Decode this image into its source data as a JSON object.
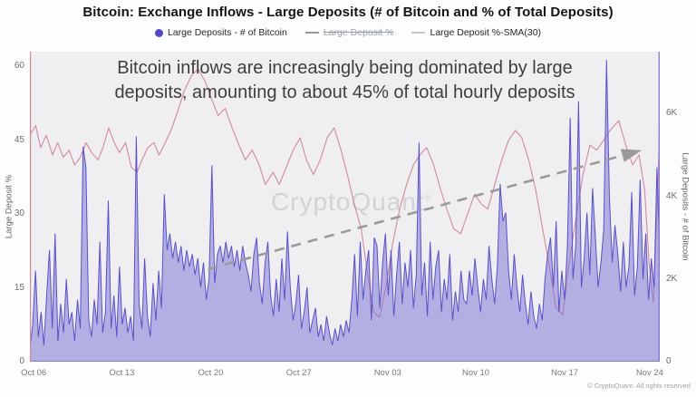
{
  "title": "Bitcoin: Exchange Inflows - Large Deposits (# of Bitcoin and % of Total Deposits)",
  "legend": {
    "items": [
      {
        "label": "Large Deposits - # of Bitcoin",
        "marker": "dot",
        "color": "#5348c7",
        "disabled": false
      },
      {
        "label": "Large Deposit %",
        "marker": "line",
        "color": "#95999f",
        "disabled": true
      },
      {
        "label": "Large Deposit %-SMA(30)",
        "marker": "line",
        "color": "#c6c4ca",
        "disabled": false
      }
    ]
  },
  "annotation": {
    "line1": "Bitcoin inflows are increasingly being dominated by large",
    "line2": "deposits, amounting to about 45% of total hourly deposits"
  },
  "watermark": "CryptoQuant",
  "copyright": "© CryptoQuant. All rights reserved",
  "chart_data": {
    "type": "area",
    "title": "Bitcoin: Exchange Inflows - Large Deposits (# of Bitcoin and % of Total Deposits)",
    "x_axis": {
      "labels": [
        "Oct 06",
        "Oct 13",
        "Oct 20",
        "Oct 27",
        "Nov 03",
        "Nov 10",
        "Nov 17",
        "Nov 24"
      ],
      "positions_pct": [
        0.6,
        14.6,
        28.7,
        42.7,
        56.8,
        70.8,
        84.9,
        98.4
      ]
    },
    "left_axis": {
      "title": "Large Deposit %",
      "max": 63,
      "min": 0,
      "ticks": [
        {
          "v": 0,
          "label": "0"
        },
        {
          "v": 15,
          "label": "15"
        },
        {
          "v": 30,
          "label": "30"
        },
        {
          "v": 45,
          "label": "45"
        },
        {
          "v": 60,
          "label": "60"
        }
      ],
      "axis_color": "#d98a97"
    },
    "right_axis": {
      "title": "Large Deposits - # of Bitcoin",
      "max": 7500,
      "min": 0,
      "ticks": [
        {
          "v": 0,
          "label": "0"
        },
        {
          "v": 2000,
          "label": "2K"
        },
        {
          "v": 4000,
          "label": "4K"
        },
        {
          "v": 6000,
          "label": "6K"
        }
      ],
      "axis_color": "#8078cf"
    },
    "series": [
      {
        "name": "Large Deposits - # of Bitcoin",
        "axis": "right",
        "style": "spiky-area",
        "stroke": "#5a51c8",
        "fill": "rgba(122,112,214,0.5)",
        "values": [
          300,
          900,
          2200,
          600,
          1200,
          400,
          1600,
          2700,
          800,
          3100,
          500,
          1400,
          700,
          2000,
          900,
          1200,
          500,
          1500,
          800,
          5200,
          4700,
          1000,
          600,
          1500,
          900,
          2900,
          700,
          1200,
          3900,
          800,
          1600,
          600,
          2300,
          900,
          1300,
          700,
          1100,
          500,
          5450,
          1400,
          800,
          2500,
          1100,
          600,
          1900,
          1000,
          2200,
          1300,
          4050,
          2700,
          3100,
          2500,
          2900,
          2400,
          2800,
          2200,
          2700,
          2300,
          2600,
          2100,
          2500,
          1800,
          2400,
          1500,
          2000,
          4750,
          1900,
          2600,
          2800,
          2400,
          2900,
          2500,
          2800,
          2300,
          2700,
          2200,
          2800,
          2400,
          2100,
          1700,
          2600,
          3000,
          1900,
          1400,
          2400,
          2900,
          1600,
          1100,
          2000,
          1200,
          2500,
          1500,
          3150,
          1800,
          1000,
          1400,
          2100,
          800,
          1200,
          1800,
          700,
          1000,
          1300,
          600,
          900,
          500,
          1100,
          700,
          400,
          800,
          500,
          900,
          600,
          1000,
          700,
          1500,
          2600,
          1100,
          2900,
          1500,
          2200,
          2700,
          1000,
          3000,
          2800,
          1300,
          2400,
          3100,
          1600,
          2700,
          1100,
          2100,
          2900,
          1400,
          2400,
          1800,
          2700,
          1300,
          2100,
          5300,
          1600,
          2400,
          1100,
          2900,
          1500,
          2300,
          2700,
          1200,
          2000,
          1500,
          2600,
          1000,
          1700,
          1200,
          2200,
          1500,
          1400,
          2200,
          1600,
          2500,
          1800,
          1200,
          2000,
          1500,
          2800,
          2000,
          1400,
          2300,
          4300,
          3400,
          3600,
          2200,
          1500,
          2600,
          1800,
          1200,
          2100,
          1400,
          900,
          1700,
          1100,
          800,
          1400,
          1000,
          2000,
          2600,
          3000,
          1800,
          3400,
          1200,
          2200,
          1500,
          2800,
          5900,
          2000,
          2800,
          6300,
          1800,
          2500,
          3600,
          2100,
          4200,
          3000,
          1800,
          2400,
          3200,
          7300,
          4000,
          2400,
          3300,
          2600,
          1700,
          2900,
          1800,
          2300,
          4100,
          1600,
          2300,
          4400,
          2000,
          3100,
          1500,
          2500,
          1800,
          4700,
          2600
        ]
      },
      {
        "name": "Large Deposit %-SMA(30)",
        "axis": "left",
        "style": "line",
        "stroke": "#d4889c",
        "points": [
          [
            0,
            46
          ],
          [
            0.9,
            48
          ],
          [
            1.7,
            43.5
          ],
          [
            2.6,
            46
          ],
          [
            3.6,
            42
          ],
          [
            4.4,
            44.5
          ],
          [
            5.3,
            41.5
          ],
          [
            6.2,
            43
          ],
          [
            7.1,
            40
          ],
          [
            8,
            41.5
          ],
          [
            8.9,
            44.5
          ],
          [
            9.8,
            42.5
          ],
          [
            10.8,
            41
          ],
          [
            11.6,
            43.5
          ],
          [
            12.5,
            47.5
          ],
          [
            13.4,
            44.5
          ],
          [
            14.2,
            42.5
          ],
          [
            15.2,
            44.5
          ],
          [
            16.1,
            39.5
          ],
          [
            17,
            38.5
          ],
          [
            17.8,
            41
          ],
          [
            18.7,
            43.5
          ],
          [
            19.7,
            44.5
          ],
          [
            20.5,
            42
          ],
          [
            21.3,
            44
          ],
          [
            22.4,
            47
          ],
          [
            23.5,
            51
          ],
          [
            24.5,
            55
          ],
          [
            25.6,
            58
          ],
          [
            26.7,
            59.5
          ],
          [
            27.8,
            57
          ],
          [
            28.8,
            53.5
          ],
          [
            29.9,
            50
          ],
          [
            31,
            51.5
          ],
          [
            32.1,
            47.5
          ],
          [
            33.2,
            44
          ],
          [
            34.2,
            41
          ],
          [
            35.3,
            43
          ],
          [
            36.4,
            40
          ],
          [
            37.4,
            36
          ],
          [
            38.6,
            38.5
          ],
          [
            39.6,
            36
          ],
          [
            40.7,
            39.5
          ],
          [
            41.8,
            43
          ],
          [
            42.9,
            45.5
          ],
          [
            43.9,
            41
          ],
          [
            45,
            38
          ],
          [
            46.1,
            41
          ],
          [
            47.2,
            45.5
          ],
          [
            48.3,
            47.5
          ],
          [
            49.4,
            43
          ],
          [
            50.4,
            38
          ],
          [
            51.5,
            32
          ],
          [
            52.6,
            27
          ],
          [
            53.7,
            17
          ],
          [
            54.6,
            10
          ],
          [
            55.5,
            9
          ],
          [
            56.5,
            15
          ],
          [
            57.6,
            24
          ],
          [
            58.7,
            31
          ],
          [
            59.8,
            36
          ],
          [
            60.9,
            40
          ],
          [
            61.9,
            42
          ],
          [
            63,
            43.5
          ],
          [
            64.1,
            40
          ],
          [
            65.2,
            35
          ],
          [
            66.2,
            31
          ],
          [
            67.3,
            27
          ],
          [
            68.4,
            26
          ],
          [
            69.5,
            30
          ],
          [
            70.6,
            34
          ],
          [
            71.7,
            32
          ],
          [
            72.7,
            31
          ],
          [
            73.8,
            36
          ],
          [
            74.9,
            41
          ],
          [
            76,
            45
          ],
          [
            77.1,
            47
          ],
          [
            78.1,
            45.5
          ],
          [
            79.2,
            41
          ],
          [
            80.3,
            35
          ],
          [
            81.4,
            27
          ],
          [
            82.4,
            20
          ],
          [
            83.5,
            11
          ],
          [
            84.6,
            9.5
          ],
          [
            85.6,
            20
          ],
          [
            86.8,
            30
          ],
          [
            87.8,
            38
          ],
          [
            88.9,
            44
          ],
          [
            90,
            43
          ],
          [
            91.1,
            45
          ],
          [
            92.1,
            47
          ],
          [
            93.5,
            49
          ],
          [
            94.6,
            44
          ],
          [
            95.7,
            40
          ],
          [
            96.7,
            42
          ],
          [
            97.6,
            35
          ],
          [
            98.3,
            20
          ],
          [
            99,
            12
          ],
          [
            99.6,
            32
          ],
          [
            100,
            48
          ]
        ]
      }
    ],
    "trend_arrow": {
      "from_pct": [
        28.3,
        18.8
      ],
      "to_pct": [
        93.8,
        41.8
      ],
      "color": "#9a9a9a"
    },
    "grid": false,
    "legend_position": "top"
  }
}
